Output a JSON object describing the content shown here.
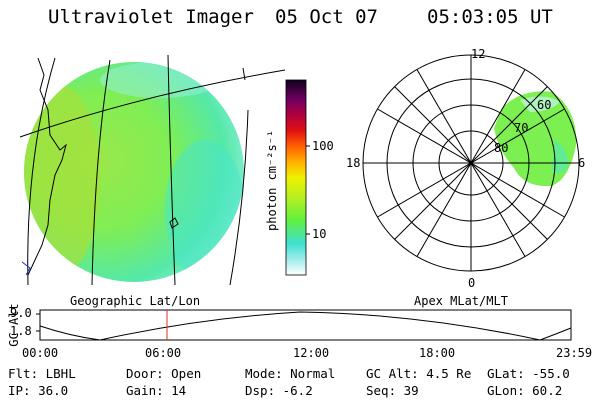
{
  "header": {
    "instrument": "Ultraviolet Imager",
    "date": "05 Oct 07",
    "time": "05:03:05 UT"
  },
  "colorbar": {
    "label": "photon cm⁻²s⁻¹",
    "ticks": [
      "100",
      "10"
    ]
  },
  "geo_panel": {
    "caption": "Geographic Lat/Lon"
  },
  "polar_panel": {
    "caption": "Apex MLat/MLT",
    "mlt_labels": {
      "top": "12",
      "left": "18",
      "right": "6",
      "bottom": "0"
    },
    "lat_labels": [
      "60",
      "70",
      "80"
    ]
  },
  "altitude_plot": {
    "ylabel": "GC Alt",
    "y_ticks": [
      "9.0",
      "1.8"
    ],
    "x_ticks": [
      "00:00",
      "06:00",
      "12:00",
      "18:00",
      "23:59"
    ]
  },
  "info": {
    "flt": "Flt: LBHL",
    "ip": "IP: 36.0",
    "door": "Door: Open",
    "gain": "Gain: 14",
    "mode": "Mode: Normal",
    "dsp": "Dsp:   -6.2",
    "gc_alt": "GC Alt: 4.5 Re",
    "seq": "Seq: 39",
    "glat": "GLat: -55.0",
    "glon": "GLon:  60.2"
  },
  "colors": {
    "disk_green": "#7CF050",
    "disk_cyan": "#46E6C8",
    "marker_red": "#E03020"
  }
}
